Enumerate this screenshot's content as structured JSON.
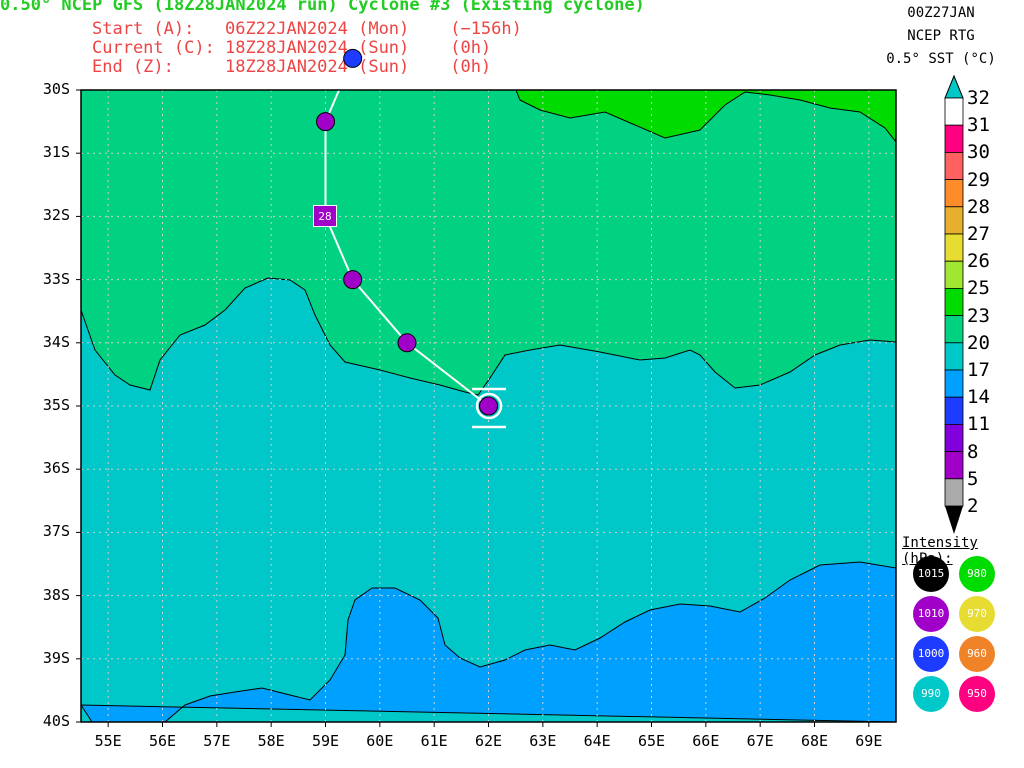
{
  "header": {
    "title": "0.50° NCEP GFS (18Z28JAN2024 run) Cyclone #3 (Existing cyclone)",
    "start_line": "Start (A):   06Z22JAN2024 (Mon)    (−156h)",
    "current_line": "Current (C): 18Z28JAN2024 (Sun)    (0h)",
    "end_line": "End (Z):     18Z28JAN2024 (Sun)    (0h)"
  },
  "legend_top": {
    "date": "00Z27JAN",
    "source": "NCEP RTG",
    "field": "0.5° SST (°C)"
  },
  "map": {
    "lon_range": [
      54.5,
      69.5
    ],
    "lat_range": [
      -40,
      -30
    ],
    "lon_labels": [
      "55E",
      "56E",
      "57E",
      "58E",
      "59E",
      "60E",
      "61E",
      "62E",
      "63E",
      "64E",
      "65E",
      "66E",
      "67E",
      "68E",
      "69E"
    ],
    "lat_labels": [
      "30S",
      "31S",
      "32S",
      "33S",
      "34S",
      "35S",
      "36S",
      "37S",
      "38S",
      "39S",
      "40S"
    ],
    "colors": {
      "sst_20_23": "#00c8c8",
      "sst_23_25": "#00d282",
      "sst_25_26": "#00dc00",
      "sst_17_20": "#00a0ff",
      "track": "#ffffff"
    },
    "date_marker": "28"
  },
  "colorbar": {
    "labels": [
      "32",
      "31",
      "30",
      "29",
      "28",
      "27",
      "26",
      "25",
      "23",
      "20",
      "17",
      "14",
      "11",
      "8",
      "5",
      "2"
    ],
    "colors": [
      "#ffffff",
      "#ff0080",
      "#ff6060",
      "#ff8c28",
      "#e6af2d",
      "#e6dc32",
      "#a0e632",
      "#00dc00",
      "#00d282",
      "#00c8c8",
      "#00a0ff",
      "#1e3cff",
      "#8200dc",
      "#a000c8",
      "#aaaaaa"
    ]
  },
  "intensity_legend": {
    "title": "Intensity (hPa):",
    "items": [
      {
        "label": "1015",
        "color": "#000000"
      },
      {
        "label": "980",
        "color": "#00dc00"
      },
      {
        "label": "1010",
        "color": "#a000c8"
      },
      {
        "label": "970",
        "color": "#e6dc32"
      },
      {
        "label": "1000",
        "color": "#1e3cff"
      },
      {
        "label": "960",
        "color": "#f08228"
      },
      {
        "label": "990",
        "color": "#00c8c8"
      },
      {
        "label": "950",
        "color": "#ff0080"
      }
    ]
  },
  "track": [
    {
      "lon": 59.5,
      "lat": -29.5,
      "pressure": 1000
    },
    {
      "lon": 59.0,
      "lat": -30.5,
      "pressure": 1010
    },
    {
      "lon": 59.0,
      "lat": -32.0,
      "pressure": 1010,
      "date": "28"
    },
    {
      "lon": 59.5,
      "lat": -33.0,
      "pressure": 1010
    },
    {
      "lon": 60.5,
      "lat": -34.0,
      "pressure": 1010
    },
    {
      "lon": 62.0,
      "lat": -35.0,
      "pressure": 1010
    }
  ]
}
